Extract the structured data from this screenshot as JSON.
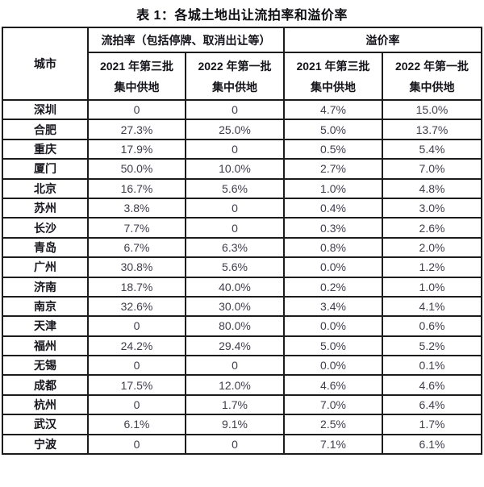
{
  "colors": {
    "border": "#1c1c1e",
    "heading_text": "#141319",
    "value_text": "#403d4b",
    "background": "#ffffff"
  },
  "chart_data": {
    "type": "table",
    "title": "表 1：各城土地出让流拍率和溢价率",
    "header": {
      "city": "城市",
      "groups": [
        {
          "label": "流拍率（包括停牌、取消出让等）",
          "span": 2
        },
        {
          "label": "溢价率",
          "span": 2
        }
      ],
      "sub_columns": [
        {
          "line1": "2021 年第三批",
          "line2": "集中供地"
        },
        {
          "line1": "2022 年第一批",
          "line2": "集中供地"
        },
        {
          "line1": "2021 年第三批",
          "line2": "集中供地"
        },
        {
          "line1": "2022 年第一批",
          "line2": "集中供地"
        }
      ]
    },
    "columns_flat": [
      "城市",
      "流拍率 2021 年第三批集中供地",
      "流拍率 2022 年第一批集中供地",
      "溢价率 2021 年第三批集中供地",
      "溢价率 2022 年第一批集中供地"
    ],
    "rows": [
      {
        "city": "深圳",
        "values": [
          "0",
          "0",
          "4.7%",
          "15.0%"
        ]
      },
      {
        "city": "合肥",
        "values": [
          "27.3%",
          "25.0%",
          "5.0%",
          "13.7%"
        ]
      },
      {
        "city": "重庆",
        "values": [
          "17.9%",
          "0",
          "0.5%",
          "5.4%"
        ]
      },
      {
        "city": "厦门",
        "values": [
          "50.0%",
          "10.0%",
          "2.7%",
          "7.0%"
        ]
      },
      {
        "city": "北京",
        "values": [
          "16.7%",
          "5.6%",
          "1.0%",
          "4.8%"
        ]
      },
      {
        "city": "苏州",
        "values": [
          "3.8%",
          "0",
          "0.4%",
          "3.0%"
        ]
      },
      {
        "city": "长沙",
        "values": [
          "7.7%",
          "0",
          "0.3%",
          "2.6%"
        ]
      },
      {
        "city": "青岛",
        "values": [
          "6.7%",
          "6.3%",
          "0.8%",
          "2.0%"
        ]
      },
      {
        "city": "广州",
        "values": [
          "30.8%",
          "5.6%",
          "0.0%",
          "1.2%"
        ]
      },
      {
        "city": "济南",
        "values": [
          "18.7%",
          "40.0%",
          "0.2%",
          "1.0%"
        ]
      },
      {
        "city": "南京",
        "values": [
          "32.6%",
          "30.0%",
          "3.4%",
          "4.1%"
        ]
      },
      {
        "city": "天津",
        "values": [
          "0",
          "80.0%",
          "0.0%",
          "0.6%"
        ]
      },
      {
        "city": "福州",
        "values": [
          "24.2%",
          "29.4%",
          "5.0%",
          "5.2%"
        ]
      },
      {
        "city": "无锡",
        "values": [
          "0",
          "0",
          "0.0%",
          "0.1%"
        ]
      },
      {
        "city": "成都",
        "values": [
          "17.5%",
          "12.0%",
          "4.6%",
          "4.6%"
        ]
      },
      {
        "city": "杭州",
        "values": [
          "0",
          "1.7%",
          "7.0%",
          "6.4%"
        ]
      },
      {
        "city": "武汉",
        "values": [
          "6.1%",
          "9.1%",
          "2.5%",
          "1.7%"
        ]
      },
      {
        "city": "宁波",
        "values": [
          "0",
          "0",
          "7.1%",
          "6.1%"
        ]
      }
    ]
  }
}
